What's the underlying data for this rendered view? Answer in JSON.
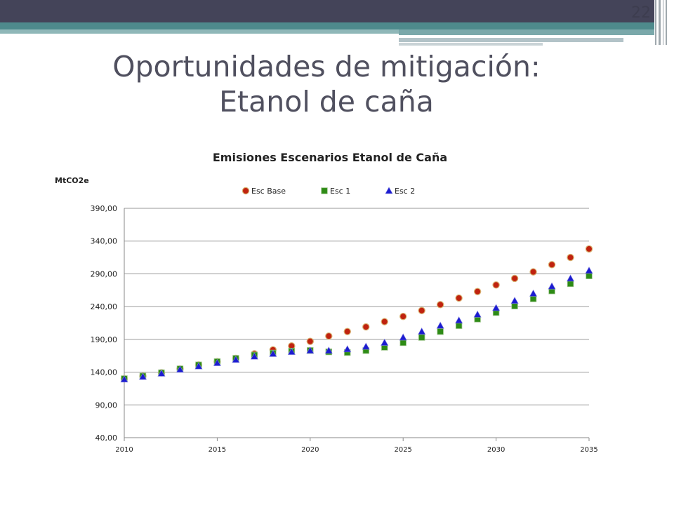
{
  "slide": {
    "number": "22",
    "title_line1": "Oportunidades de mitigación:",
    "title_line2": "Etanol de caña"
  },
  "chart_data": {
    "type": "scatter",
    "title": "Emisiones Escenarios Etanol de Caña",
    "ylabel": "MtCO2e",
    "xlabel": "",
    "xlim": [
      2010,
      2035
    ],
    "ylim": [
      40,
      390
    ],
    "x_ticks": [
      2010,
      2015,
      2020,
      2025,
      2030,
      2035
    ],
    "y_ticks": [
      40,
      90,
      140,
      190,
      240,
      290,
      340,
      390
    ],
    "y_tick_labels": [
      "40,00",
      "90,00",
      "140,00",
      "190,00",
      "240,00",
      "290,00",
      "340,00",
      "390,00"
    ],
    "grid": "horizontal",
    "legend_position": "top",
    "x": [
      2010,
      2011,
      2012,
      2013,
      2014,
      2015,
      2016,
      2017,
      2018,
      2019,
      2020,
      2021,
      2022,
      2023,
      2024,
      2025,
      2026,
      2027,
      2028,
      2029,
      2030,
      2031,
      2032,
      2033,
      2034,
      2035
    ],
    "series": [
      {
        "name": "Esc Base",
        "marker": "circle",
        "color": "#c0220f",
        "values": [
          130,
          134,
          139,
          145,
          151,
          156,
          161,
          168,
          174,
          180,
          187,
          195,
          202,
          209,
          217,
          225,
          234,
          243,
          253,
          263,
          273,
          283,
          293,
          304,
          315,
          328
        ]
      },
      {
        "name": "Esc 1",
        "marker": "square",
        "color": "#2e8b16",
        "values": [
          130,
          134,
          139,
          145,
          151,
          156,
          161,
          166,
          169,
          172,
          173,
          171,
          170,
          173,
          178,
          185,
          193,
          202,
          211,
          221,
          231,
          241,
          252,
          264,
          275,
          287
        ]
      },
      {
        "name": "Esc 2",
        "marker": "triangle",
        "color": "#1c1cd0",
        "values": [
          129,
          133,
          138,
          144,
          149,
          154,
          159,
          164,
          168,
          171,
          173,
          173,
          175,
          179,
          185,
          193,
          202,
          211,
          219,
          228,
          238,
          249,
          260,
          271,
          283,
          295
        ]
      }
    ]
  }
}
